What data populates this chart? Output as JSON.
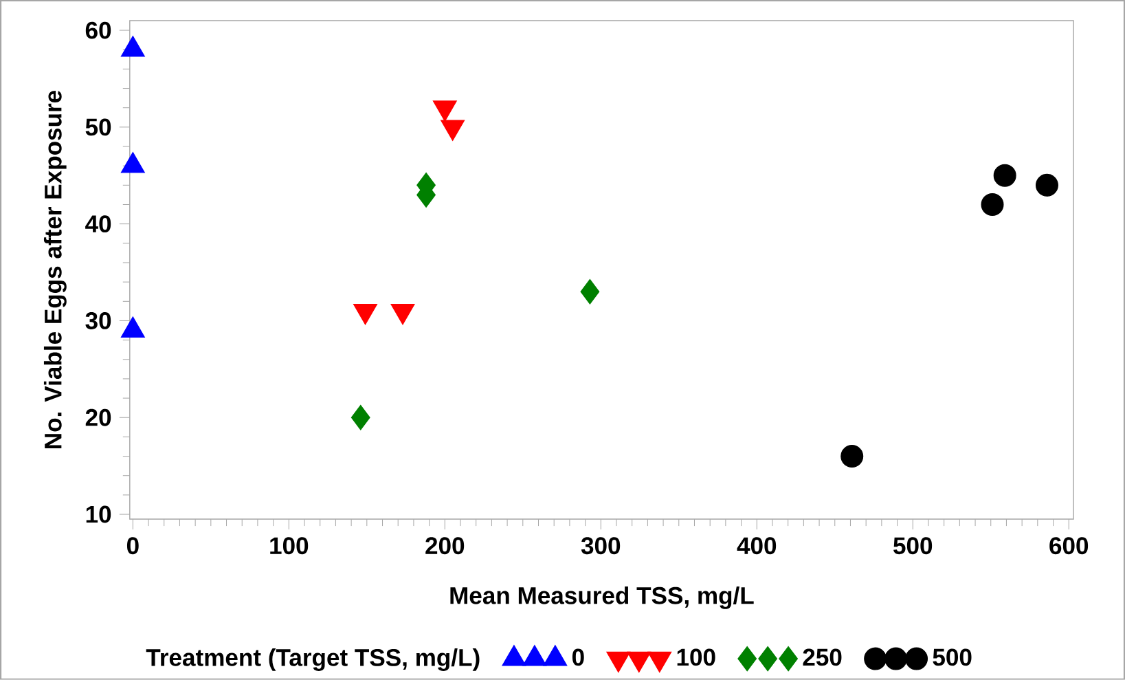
{
  "chart_data": {
    "type": "scatter",
    "xlabel": "Mean  Measured  TSS,  mg/L",
    "ylabel": "No.  Viable  Eggs  after  Exposure",
    "legend_title": "Treatment  (Target  TSS,  mg/L)",
    "legend": "bottom",
    "grid": false,
    "xlim": [
      -2,
      603
    ],
    "ylim": [
      9.5,
      61
    ],
    "xticks": [
      0,
      100,
      200,
      300,
      400,
      500,
      600
    ],
    "yticks": [
      10,
      20,
      30,
      40,
      50,
      60
    ],
    "series": [
      {
        "name": "0",
        "color": "#0000ff",
        "marker": "triangle",
        "x": [
          0,
          0,
          0
        ],
        "values": [
          58,
          46,
          29
        ]
      },
      {
        "name": "100",
        "color": "#ff0000",
        "marker": "triangle-down",
        "x": [
          200,
          205,
          149,
          173
        ],
        "values": [
          52,
          50,
          31,
          31
        ]
      },
      {
        "name": "250",
        "color": "#008000",
        "marker": "diamond",
        "x": [
          188,
          188,
          146,
          293
        ],
        "values": [
          44,
          43,
          20,
          33
        ]
      },
      {
        "name": "500",
        "color": "#000000",
        "marker": "circle",
        "x": [
          461,
          551,
          559,
          586
        ],
        "values": [
          16,
          42,
          45,
          44
        ]
      }
    ]
  }
}
